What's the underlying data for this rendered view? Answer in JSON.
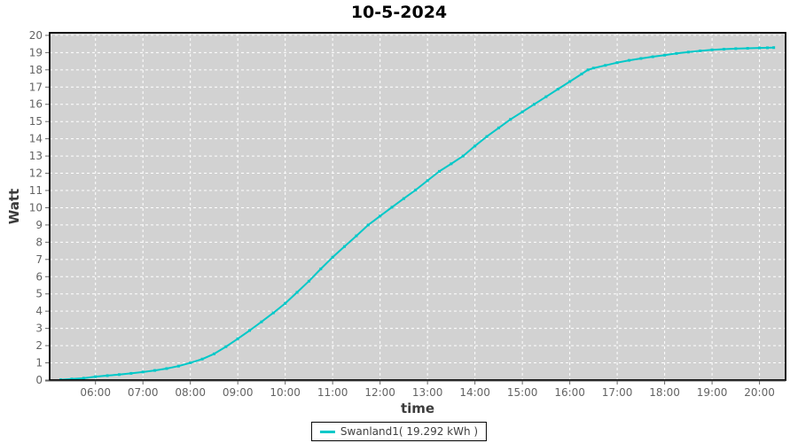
{
  "title": "10-5-2024",
  "chart_data": {
    "type": "line",
    "title": "10-5-2024",
    "xlabel": "time",
    "ylabel": "Watt",
    "x_domain_minutes": [
      302,
      1233
    ],
    "ylim": [
      0,
      20.15
    ],
    "grid": "white-dashed",
    "legend_position": "bottom-center",
    "y_ticks": [
      0,
      1,
      2,
      3,
      4,
      5,
      6,
      7,
      8,
      9,
      10,
      11,
      12,
      13,
      14,
      15,
      16,
      17,
      18,
      19,
      20
    ],
    "x_ticks": [
      {
        "m": 360,
        "label": "06:00"
      },
      {
        "m": 420,
        "label": "07:00"
      },
      {
        "m": 480,
        "label": "08:00"
      },
      {
        "m": 540,
        "label": "09:00"
      },
      {
        "m": 600,
        "label": "10:00"
      },
      {
        "m": 660,
        "label": "11:00"
      },
      {
        "m": 720,
        "label": "12:00"
      },
      {
        "m": 780,
        "label": "13:00"
      },
      {
        "m": 840,
        "label": "14:00"
      },
      {
        "m": 900,
        "label": "15:00"
      },
      {
        "m": 960,
        "label": "16:00"
      },
      {
        "m": 1020,
        "label": "17:00"
      },
      {
        "m": 1080,
        "label": "18:00"
      },
      {
        "m": 1140,
        "label": "19:00"
      },
      {
        "m": 1200,
        "label": "20:00"
      }
    ],
    "series": [
      {
        "name": "Swanland1( 19.292 kWh )",
        "color": "#00c8c8",
        "total_kwh": "19.292",
        "points": [
          [
            316,
            0.02
          ],
          [
            330,
            0.06
          ],
          [
            345,
            0.11
          ],
          [
            360,
            0.2
          ],
          [
            375,
            0.26
          ],
          [
            390,
            0.32
          ],
          [
            405,
            0.39
          ],
          [
            420,
            0.47
          ],
          [
            435,
            0.56
          ],
          [
            450,
            0.67
          ],
          [
            465,
            0.81
          ],
          [
            480,
            1.0
          ],
          [
            495,
            1.22
          ],
          [
            510,
            1.52
          ],
          [
            525,
            1.94
          ],
          [
            540,
            2.4
          ],
          [
            555,
            2.88
          ],
          [
            570,
            3.38
          ],
          [
            585,
            3.9
          ],
          [
            600,
            4.45
          ],
          [
            615,
            5.09
          ],
          [
            630,
            5.74
          ],
          [
            645,
            6.45
          ],
          [
            660,
            7.13
          ],
          [
            675,
            7.75
          ],
          [
            690,
            8.37
          ],
          [
            705,
            9.0
          ],
          [
            720,
            9.52
          ],
          [
            735,
            10.03
          ],
          [
            750,
            10.53
          ],
          [
            765,
            11.03
          ],
          [
            780,
            11.57
          ],
          [
            795,
            12.11
          ],
          [
            810,
            12.55
          ],
          [
            825,
            13.0
          ],
          [
            840,
            13.58
          ],
          [
            855,
            14.13
          ],
          [
            870,
            14.63
          ],
          [
            885,
            15.13
          ],
          [
            900,
            15.56
          ],
          [
            915,
            16.0
          ],
          [
            930,
            16.44
          ],
          [
            945,
            16.88
          ],
          [
            960,
            17.32
          ],
          [
            975,
            17.76
          ],
          [
            983,
            18.0
          ],
          [
            990,
            18.1
          ],
          [
            1005,
            18.26
          ],
          [
            1020,
            18.42
          ],
          [
            1035,
            18.55
          ],
          [
            1050,
            18.66
          ],
          [
            1065,
            18.76
          ],
          [
            1080,
            18.85
          ],
          [
            1095,
            18.95
          ],
          [
            1110,
            19.03
          ],
          [
            1125,
            19.1
          ],
          [
            1140,
            19.16
          ],
          [
            1155,
            19.2
          ],
          [
            1170,
            19.23
          ],
          [
            1185,
            19.25
          ],
          [
            1200,
            19.27
          ],
          [
            1210,
            19.28
          ],
          [
            1218,
            19.29
          ]
        ]
      }
    ],
    "colors": {
      "plot_bg": "#d2d2d2",
      "grid": "#ffffff",
      "line": "#00c8c8",
      "border": "#000000",
      "tick": "#666666",
      "tick_label": "#636363",
      "axis_label": "#3c3c3c",
      "title": "#000000",
      "legend_text": "#404040"
    }
  }
}
